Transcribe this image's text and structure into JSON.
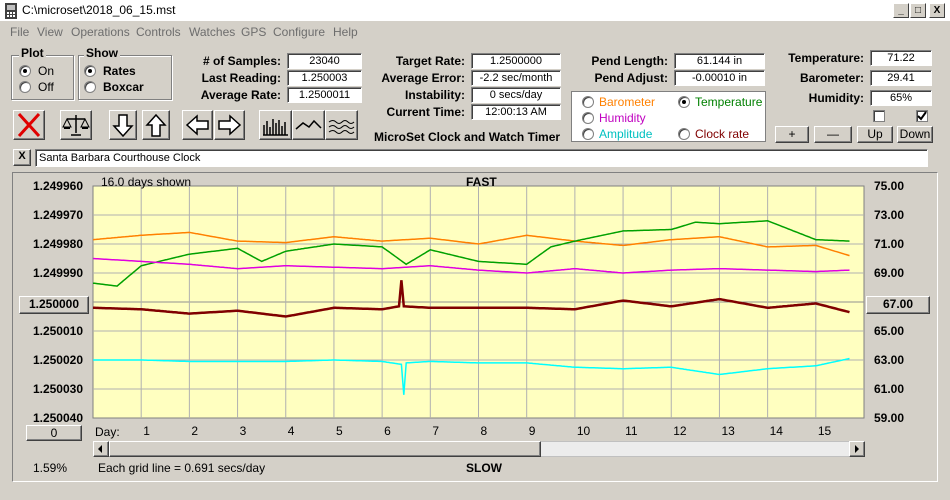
{
  "window": {
    "title": "C:\\microset\\2018_06_15.mst",
    "min_glyph": "_",
    "max_glyph": "□",
    "close_glyph": "X"
  },
  "menu": [
    "File",
    "View",
    "Operations",
    "Controls",
    "Watches",
    "GPS",
    "Configure",
    "Help"
  ],
  "plot_group": {
    "title": "Plot",
    "options": [
      "On",
      "Off"
    ],
    "selected": "On"
  },
  "show_group": {
    "title": "Show",
    "options": [
      "Rates",
      "Boxcar"
    ],
    "selected": "Rates"
  },
  "stats": {
    "samples_label": "# of Samples:",
    "samples_value": "23040",
    "last_reading_label": "Last Reading:",
    "last_reading_value": "1.250003",
    "average_rate_label": "Average Rate:",
    "average_rate_value": "1.2500011"
  },
  "rates": {
    "target_rate_label": "Target Rate:",
    "target_rate_value": "1.2500000",
    "average_error_label": "Average Error:",
    "average_error_value": "-2.2 sec/month",
    "instability_label": "Instability:",
    "instability_value": "0 secs/day",
    "current_time_label": "Current Time:",
    "current_time_value": "12:00:13 AM"
  },
  "app_caption": "MicroSet Clock and Watch Timer",
  "pendulum": {
    "length_label": "Pend Length:",
    "length_value": "61.144 in",
    "adjust_label": "Pend Adjust:",
    "adjust_value": "-0.00010 in"
  },
  "sensor_select": {
    "options": [
      {
        "label": "Barometer",
        "color": "#ff8000",
        "selected": false
      },
      {
        "label": "Temperature",
        "color": "#008000",
        "selected": true
      },
      {
        "label": "Humidity",
        "color": "#c000c0",
        "selected": false
      },
      {
        "label": "Clock rate",
        "color": "#800000",
        "selected": false
      },
      {
        "label": "Amplitude",
        "color": "#00c0c0",
        "selected": false
      }
    ]
  },
  "environment": {
    "temperature_label": "Temperature:",
    "temperature_value": "71.22",
    "barometer_label": "Barometer:",
    "barometer_value": "29.41",
    "humidity_label": "Humidity:",
    "humidity_value": "65%"
  },
  "step_buttons": {
    "plus": "+",
    "minus": "—",
    "up": "Up",
    "down": "Down"
  },
  "description": "Santa Barbara Courthouse Clock",
  "description_close": "X",
  "chart": {
    "days_shown": "16.0 days shown",
    "top_label": "FAST",
    "bottom_label": "SLOW",
    "grid_note": "Each grid line = 0.691 secs/day",
    "percent": "1.59%",
    "left_center_button": "1.250000",
    "right_center_button": "67.00",
    "bottom_left_button": "0",
    "day_axis_label": "Day:"
  },
  "chart_data": {
    "type": "line",
    "left_ticks": [
      "1.249960",
      "1.249970",
      "1.249980",
      "1.249990",
      "1.250000",
      "1.250010",
      "1.250020",
      "1.250030",
      "1.250040"
    ],
    "right_ticks": [
      "75.00",
      "73.00",
      "71.00",
      "69.00",
      "67.00",
      "65.00",
      "63.00",
      "61.00",
      "59.00"
    ],
    "day_ticks": [
      "1",
      "2",
      "3",
      "4",
      "5",
      "6",
      "7",
      "8",
      "9",
      "10",
      "11",
      "12",
      "13",
      "14",
      "15"
    ],
    "xlim": [
      0,
      16
    ],
    "right_ylim": [
      59,
      75
    ],
    "grid": true,
    "series": [
      {
        "name": "Barometer",
        "color": "#ff8000",
        "x": [
          0,
          1,
          2,
          3,
          4,
          5,
          6,
          7,
          8,
          9,
          10,
          11,
          12,
          13,
          14,
          15,
          15.7
        ],
        "values": [
          71.3,
          71.6,
          71.8,
          71.2,
          71.1,
          71.5,
          71.2,
          71.4,
          71.0,
          71.6,
          71.2,
          70.9,
          71.3,
          71.5,
          70.8,
          70.9,
          70.2
        ]
      },
      {
        "name": "Temperature",
        "color": "#00a000",
        "x": [
          0,
          0.5,
          1,
          2,
          3,
          3.5,
          4,
          5,
          6,
          6.5,
          7,
          8,
          9,
          9.5,
          10,
          11,
          12,
          12.5,
          13,
          14,
          15,
          15.7
        ],
        "values": [
          68.3,
          68.1,
          69.5,
          70.3,
          70.7,
          69.8,
          70.5,
          71.0,
          70.8,
          69.6,
          70.6,
          69.8,
          69.6,
          70.8,
          71.2,
          71.9,
          72.0,
          72.5,
          72.4,
          72.6,
          71.3,
          71.2
        ]
      },
      {
        "name": "Humidity",
        "color": "#e000e0",
        "x": [
          0,
          1,
          2,
          3,
          4,
          5,
          6,
          7,
          8,
          9,
          10,
          11,
          12,
          13,
          14,
          15,
          15.7
        ],
        "values": [
          70.0,
          69.8,
          69.6,
          69.3,
          69.5,
          69.4,
          69.3,
          69.5,
          69.2,
          69.0,
          69.3,
          69.0,
          69.2,
          69.3,
          69.2,
          69.1,
          69.2
        ]
      },
      {
        "name": "Clock rate",
        "color": "#800000",
        "x": [
          0,
          1,
          2,
          3,
          4,
          5,
          6,
          6.35,
          6.4,
          6.45,
          7,
          8,
          9,
          10,
          11,
          12,
          13,
          14,
          15,
          15.7
        ],
        "values": [
          66.6,
          66.5,
          66.2,
          66.4,
          66.0,
          66.6,
          66.5,
          66.7,
          68.5,
          66.7,
          66.6,
          66.6,
          66.6,
          66.5,
          67.1,
          66.7,
          67.2,
          66.6,
          66.9,
          66.3
        ]
      },
      {
        "name": "Amplitude",
        "color": "#00ffff",
        "x": [
          0,
          1,
          2,
          3,
          4,
          5,
          6,
          6.4,
          6.45,
          6.5,
          7,
          8,
          9,
          10,
          11,
          12,
          13,
          14,
          15,
          15.7
        ],
        "values": [
          63.0,
          63.0,
          62.9,
          62.9,
          62.9,
          63.0,
          62.9,
          62.7,
          60.6,
          62.8,
          62.9,
          62.8,
          62.8,
          62.5,
          62.4,
          62.5,
          62.0,
          62.4,
          62.6,
          63.1
        ]
      }
    ]
  }
}
